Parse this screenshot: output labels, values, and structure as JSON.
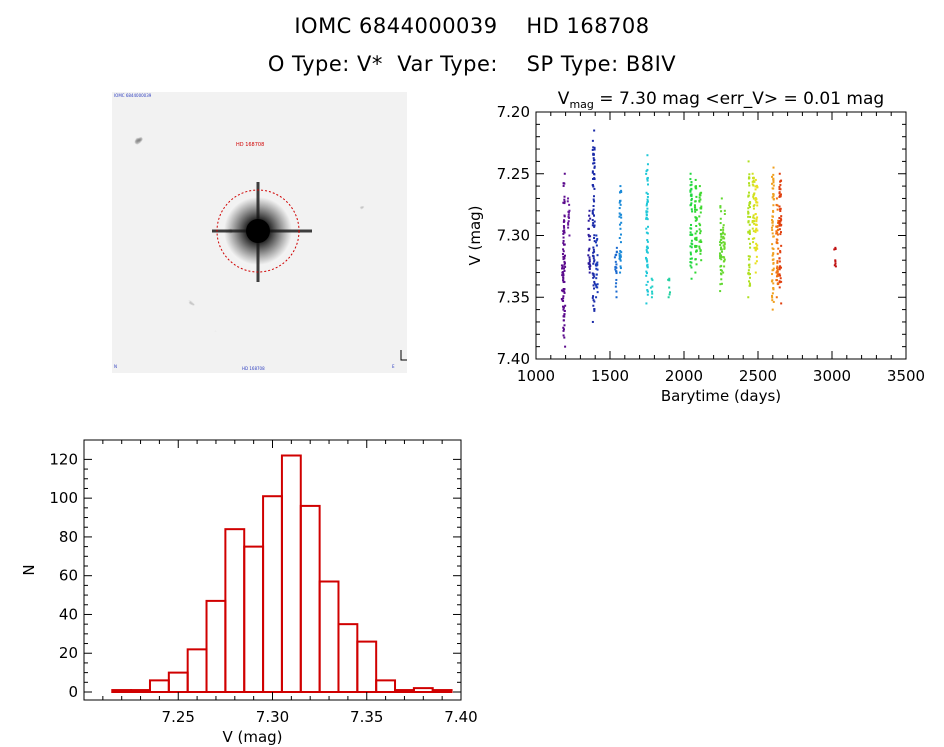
{
  "header": {
    "line1": "IOMC 6844000039    HD 168708",
    "line2": "O Type: V*  Var Type:    SP Type: B8IV"
  },
  "image": {
    "description_icon": "star-field-icon",
    "circle_color": "#d00000"
  },
  "chart_data": [
    {
      "type": "scatter",
      "title": "V_mag = 7.30 mag <err_V> = 0.01 mag",
      "title_main": "V",
      "title_sub": "mag",
      "title_rest": " = 7.30 mag <err_V> = 0.01 mag",
      "xlabel": "Barytime (days)",
      "ylabel": "V (mag)",
      "xlim": [
        1000,
        3500
      ],
      "ylim": [
        7.4,
        7.2
      ],
      "y_inverted": true,
      "xticks": [
        "1000",
        "1500",
        "2000",
        "2500",
        "3000",
        "3500"
      ],
      "yticks": [
        "7.20",
        "7.25",
        "7.30",
        "7.35",
        "7.40"
      ],
      "groups": [
        {
          "x": 1180,
          "y_min": 7.315,
          "y_max": 7.36,
          "color": "#5a0a8c"
        },
        {
          "x": 1190,
          "y_min": 7.25,
          "y_max": 7.39,
          "color": "#5a0a8c"
        },
        {
          "x": 1220,
          "y_min": 7.27,
          "y_max": 7.3,
          "color": "#6a1a9c"
        },
        {
          "x": 1360,
          "y_min": 7.28,
          "y_max": 7.33,
          "color": "#2a1a9c"
        },
        {
          "x": 1390,
          "y_min": 7.215,
          "y_max": 7.37,
          "color": "#1a2aa8"
        },
        {
          "x": 1410,
          "y_min": 7.3,
          "y_max": 7.35,
          "color": "#1a3ab8"
        },
        {
          "x": 1540,
          "y_min": 7.31,
          "y_max": 7.35,
          "color": "#1a6ad0"
        },
        {
          "x": 1570,
          "y_min": 7.26,
          "y_max": 7.33,
          "color": "#1a8ad8"
        },
        {
          "x": 1750,
          "y_min": 7.235,
          "y_max": 7.355,
          "color": "#20c8d8"
        },
        {
          "x": 1780,
          "y_min": 7.335,
          "y_max": 7.35,
          "color": "#20d0c8"
        },
        {
          "x": 1900,
          "y_min": 7.335,
          "y_max": 7.35,
          "color": "#20d0a0"
        },
        {
          "x": 2050,
          "y_min": 7.25,
          "y_max": 7.335,
          "color": "#20d840"
        },
        {
          "x": 2080,
          "y_min": 7.255,
          "y_max": 7.33,
          "color": "#30d830"
        },
        {
          "x": 2110,
          "y_min": 7.26,
          "y_max": 7.32,
          "color": "#40d830"
        },
        {
          "x": 2250,
          "y_min": 7.27,
          "y_max": 7.345,
          "color": "#60d830"
        },
        {
          "x": 2270,
          "y_min": 7.28,
          "y_max": 7.33,
          "color": "#70d830"
        },
        {
          "x": 2440,
          "y_min": 7.24,
          "y_max": 7.35,
          "color": "#b0e020"
        },
        {
          "x": 2470,
          "y_min": 7.25,
          "y_max": 7.31,
          "color": "#d0e020"
        },
        {
          "x": 2490,
          "y_min": 7.255,
          "y_max": 7.33,
          "color": "#e8e020"
        },
        {
          "x": 2600,
          "y_min": 7.245,
          "y_max": 7.36,
          "color": "#f0a020"
        },
        {
          "x": 2630,
          "y_min": 7.27,
          "y_max": 7.35,
          "color": "#f07010"
        },
        {
          "x": 2650,
          "y_min": 7.25,
          "y_max": 7.355,
          "color": "#e04010"
        },
        {
          "x": 3020,
          "y_min": 7.31,
          "y_max": 7.325,
          "color": "#c01010"
        }
      ]
    },
    {
      "type": "bar",
      "subtype": "histogram",
      "xlabel": "V (mag)",
      "ylabel": "N",
      "xlim": [
        7.2,
        7.4
      ],
      "ylim": [
        0,
        130
      ],
      "xticks": [
        "7.25",
        "7.30",
        "7.35",
        "7.40"
      ],
      "yticks": [
        "0",
        "20",
        "40",
        "60",
        "80",
        "100",
        "120"
      ],
      "color": "#d00000",
      "bin_width": 0.01,
      "bins": [
        {
          "x0": 7.215,
          "count": 1
        },
        {
          "x0": 7.225,
          "count": 1
        },
        {
          "x0": 7.235,
          "count": 6
        },
        {
          "x0": 7.245,
          "count": 10
        },
        {
          "x0": 7.255,
          "count": 22
        },
        {
          "x0": 7.265,
          "count": 47
        },
        {
          "x0": 7.275,
          "count": 84
        },
        {
          "x0": 7.285,
          "count": 75
        },
        {
          "x0": 7.295,
          "count": 101
        },
        {
          "x0": 7.305,
          "count": 122
        },
        {
          "x0": 7.315,
          "count": 96
        },
        {
          "x0": 7.325,
          "count": 57
        },
        {
          "x0": 7.335,
          "count": 35
        },
        {
          "x0": 7.345,
          "count": 26
        },
        {
          "x0": 7.355,
          "count": 6
        },
        {
          "x0": 7.365,
          "count": 1
        },
        {
          "x0": 7.375,
          "count": 2
        },
        {
          "x0": 7.385,
          "count": 1
        }
      ]
    }
  ]
}
